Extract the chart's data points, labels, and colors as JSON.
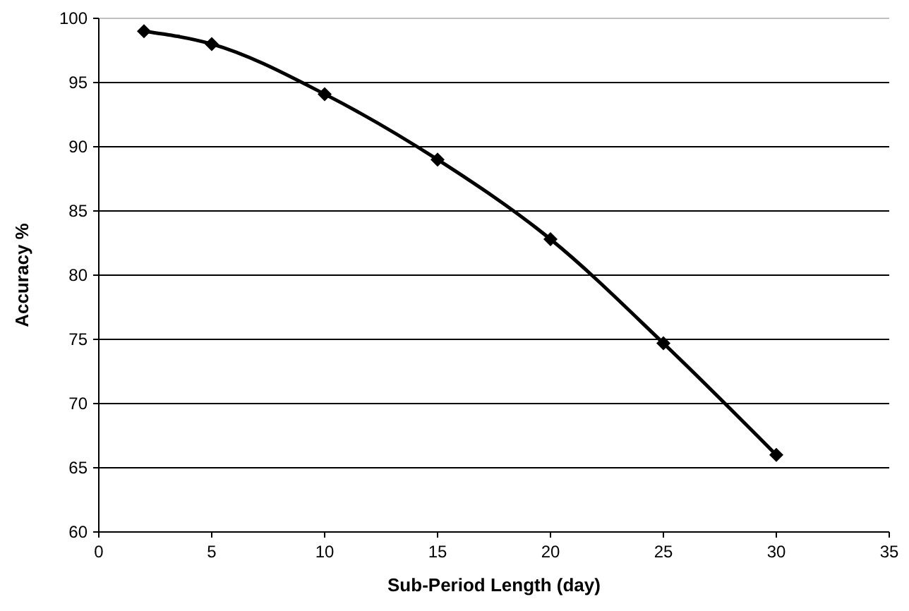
{
  "chart_data": {
    "type": "line",
    "xlabel": "Sub-Period  Length (day)",
    "ylabel": "Accuracy %",
    "x": [
      2,
      5,
      10,
      15,
      20,
      25,
      30
    ],
    "series": [
      {
        "color": "#000000",
        "values": [
          99,
          98,
          94.1,
          89,
          82.8,
          74.7,
          66
        ]
      }
    ],
    "xlim": [
      0,
      35
    ],
    "xticks": [
      0,
      5,
      10,
      15,
      20,
      25,
      30,
      35
    ],
    "ylim": [
      60,
      100
    ],
    "yticks": [
      60,
      65,
      70,
      75,
      80,
      85,
      90,
      95,
      100
    ],
    "grid": "y",
    "marker": "diamond",
    "line_style": "solid"
  }
}
